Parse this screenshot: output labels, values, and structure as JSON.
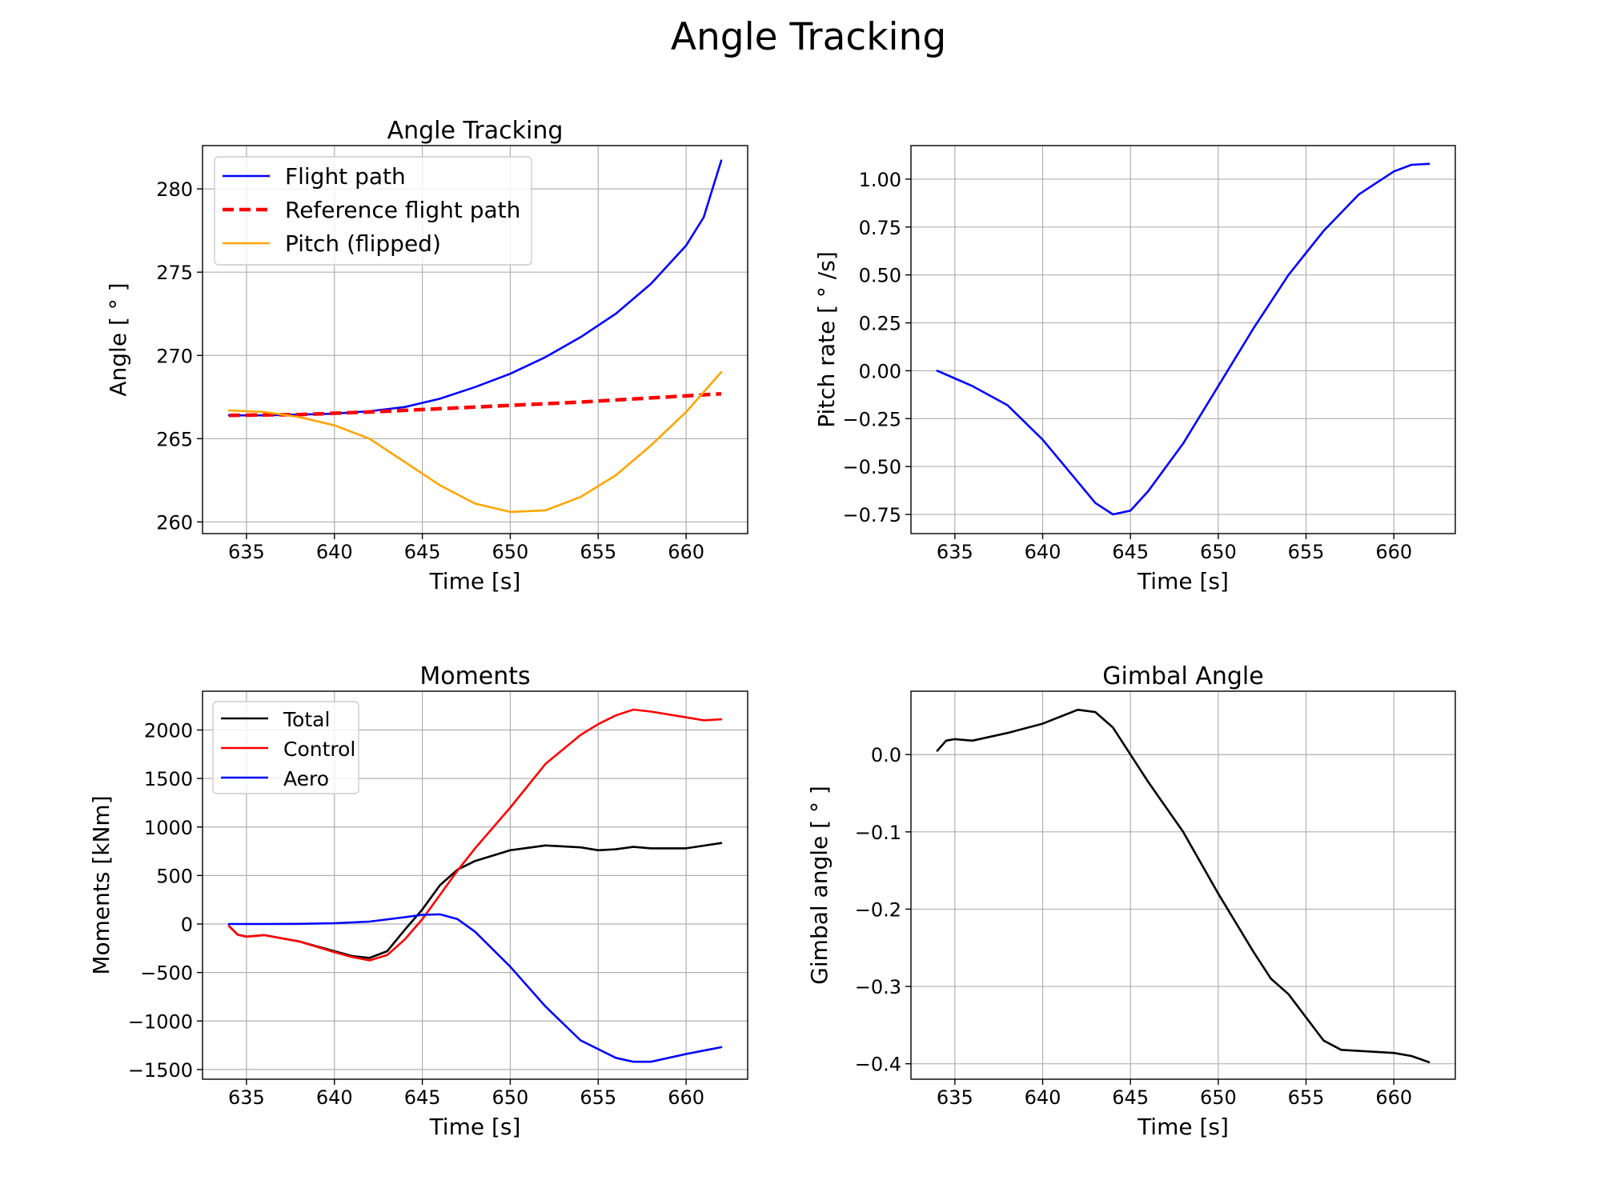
{
  "suptitle": "Angle Tracking",
  "chart_data": [
    {
      "type": "line",
      "title": "Angle Tracking",
      "xlabel": "Time [s]",
      "ylabel": "Angle [ ° ]",
      "xlim": [
        632.5,
        663.5
      ],
      "ylim": [
        259.3,
        282.6
      ],
      "xticks": [
        635,
        640,
        645,
        650,
        655,
        660
      ],
      "yticks": [
        260,
        265,
        270,
        275,
        280
      ],
      "grid": true,
      "legend": "top-left",
      "series": [
        {
          "name": "Flight path",
          "color": "#0000ff",
          "style": "solid",
          "points": [
            [
              634,
              266.4
            ],
            [
              636,
              266.4
            ],
            [
              638,
              266.45
            ],
            [
              640,
              266.5
            ],
            [
              642,
              266.65
            ],
            [
              644,
              266.9
            ],
            [
              646,
              267.4
            ],
            [
              648,
              268.1
            ],
            [
              650,
              268.9
            ],
            [
              652,
              269.9
            ],
            [
              654,
              271.1
            ],
            [
              656,
              272.5
            ],
            [
              658,
              274.3
            ],
            [
              660,
              276.6
            ],
            [
              661,
              278.3
            ],
            [
              662,
              281.7
            ]
          ]
        },
        {
          "name": "Reference flight path",
          "color": "#ff0000",
          "style": "dashed",
          "points": [
            [
              634,
              266.4
            ],
            [
              638,
              266.45
            ],
            [
              642,
              266.6
            ],
            [
              646,
              266.8
            ],
            [
              650,
              267.0
            ],
            [
              654,
              267.2
            ],
            [
              658,
              267.45
            ],
            [
              662,
              267.7
            ]
          ]
        },
        {
          "name": "Pitch (flipped)",
          "color": "#ffa500",
          "style": "solid",
          "points": [
            [
              634,
              266.7
            ],
            [
              636,
              266.6
            ],
            [
              638,
              266.3
            ],
            [
              640,
              265.8
            ],
            [
              642,
              265.0
            ],
            [
              644,
              263.6
            ],
            [
              646,
              262.2
            ],
            [
              648,
              261.1
            ],
            [
              650,
              260.6
            ],
            [
              652,
              260.7
            ],
            [
              654,
              261.5
            ],
            [
              656,
              262.8
            ],
            [
              658,
              264.6
            ],
            [
              660,
              266.6
            ],
            [
              662,
              269.0
            ]
          ]
        }
      ]
    },
    {
      "type": "line",
      "title": "",
      "xlabel": "Time [s]",
      "ylabel": "Pitch rate [ ° /s]",
      "xlim": [
        632.5,
        663.5
      ],
      "ylim": [
        -0.85,
        1.175
      ],
      "xticks": [
        635,
        640,
        645,
        650,
        655,
        660
      ],
      "yticks": [
        1.0,
        0.75,
        0.5,
        0.25,
        0.0,
        -0.25,
        -0.5,
        -0.75
      ],
      "ytick_labels": [
        "1.00",
        "0.75",
        "0.50",
        "0.25",
        "0.00",
        "−0.25",
        "−0.50",
        "−0.75"
      ],
      "grid": true,
      "series": [
        {
          "name": "",
          "color": "#0000ff",
          "style": "solid",
          "points": [
            [
              634,
              0.0
            ],
            [
              635,
              -0.04
            ],
            [
              636,
              -0.08
            ],
            [
              638,
              -0.18
            ],
            [
              640,
              -0.36
            ],
            [
              642,
              -0.58
            ],
            [
              643,
              -0.69
            ],
            [
              644,
              -0.75
            ],
            [
              645,
              -0.73
            ],
            [
              646,
              -0.63
            ],
            [
              648,
              -0.38
            ],
            [
              650,
              -0.08
            ],
            [
              652,
              0.22
            ],
            [
              654,
              0.5
            ],
            [
              656,
              0.73
            ],
            [
              658,
              0.92
            ],
            [
              660,
              1.04
            ],
            [
              661,
              1.075
            ],
            [
              662,
              1.08
            ]
          ]
        }
      ]
    },
    {
      "type": "line",
      "title": "Moments",
      "xlabel": "Time [s]",
      "ylabel": "Moments [kNm]",
      "xlim": [
        632.5,
        663.5
      ],
      "ylim": [
        -1600,
        2400
      ],
      "xticks": [
        635,
        640,
        645,
        650,
        655,
        660
      ],
      "yticks": [
        2000,
        1500,
        1000,
        500,
        0,
        -500,
        -1000,
        -1500
      ],
      "ytick_labels": [
        "2000",
        "1500",
        "1000",
        "500",
        "0",
        "−500",
        "−1000",
        "−1500"
      ],
      "grid": true,
      "legend": "top-left",
      "series": [
        {
          "name": "Total",
          "color": "#000000",
          "style": "solid",
          "points": [
            [
              634,
              -20
            ],
            [
              634.5,
              -110
            ],
            [
              635,
              -130
            ],
            [
              636,
              -115
            ],
            [
              638,
              -180
            ],
            [
              640,
              -280
            ],
            [
              641,
              -330
            ],
            [
              642,
              -350
            ],
            [
              643,
              -280
            ],
            [
              644,
              -60
            ],
            [
              645,
              150
            ],
            [
              646,
              400
            ],
            [
              647,
              560
            ],
            [
              648,
              650
            ],
            [
              650,
              760
            ],
            [
              652,
              810
            ],
            [
              654,
              790
            ],
            [
              655,
              760
            ],
            [
              656,
              770
            ],
            [
              657,
              795
            ],
            [
              658,
              780
            ],
            [
              660,
              780
            ],
            [
              662,
              835
            ]
          ]
        },
        {
          "name": "Control",
          "color": "#ff0000",
          "style": "solid",
          "points": [
            [
              634,
              -20
            ],
            [
              634.5,
              -110
            ],
            [
              635,
              -130
            ],
            [
              636,
              -115
            ],
            [
              638,
              -180
            ],
            [
              640,
              -290
            ],
            [
              641,
              -340
            ],
            [
              642,
              -375
            ],
            [
              643,
              -320
            ],
            [
              644,
              -160
            ],
            [
              645,
              50
            ],
            [
              646,
              300
            ],
            [
              647,
              550
            ],
            [
              648,
              780
            ],
            [
              650,
              1200
            ],
            [
              652,
              1650
            ],
            [
              654,
              1950
            ],
            [
              655,
              2060
            ],
            [
              656,
              2150
            ],
            [
              657,
              2210
            ],
            [
              658,
              2190
            ],
            [
              660,
              2130
            ],
            [
              661,
              2100
            ],
            [
              662,
              2110
            ]
          ]
        },
        {
          "name": "Aero",
          "color": "#0000ff",
          "style": "solid",
          "points": [
            [
              634,
              0
            ],
            [
              636,
              0
            ],
            [
              638,
              2
            ],
            [
              640,
              8
            ],
            [
              642,
              25
            ],
            [
              644,
              70
            ],
            [
              645,
              95
            ],
            [
              646,
              100
            ],
            [
              647,
              50
            ],
            [
              648,
              -80
            ],
            [
              650,
              -440
            ],
            [
              652,
              -850
            ],
            [
              654,
              -1200
            ],
            [
              656,
              -1380
            ],
            [
              657,
              -1420
            ],
            [
              658,
              -1420
            ],
            [
              660,
              -1340
            ],
            [
              662,
              -1270
            ]
          ]
        }
      ]
    },
    {
      "type": "line",
      "title": "Gimbal Angle",
      "xlabel": "Time [s]",
      "ylabel": "Gimbal angle [ ° ]",
      "xlim": [
        632.5,
        663.5
      ],
      "ylim": [
        -0.42,
        0.082
      ],
      "xticks": [
        635,
        640,
        645,
        650,
        655,
        660
      ],
      "yticks": [
        0.0,
        -0.1,
        -0.2,
        -0.3,
        -0.4
      ],
      "ytick_labels": [
        "0.0",
        "−0.1",
        "−0.2",
        "−0.3",
        "−0.4"
      ],
      "grid": true,
      "series": [
        {
          "name": "",
          "color": "#000000",
          "style": "solid",
          "points": [
            [
              634,
              0.005
            ],
            [
              634.5,
              0.018
            ],
            [
              635,
              0.02
            ],
            [
              636,
              0.018
            ],
            [
              638,
              0.028
            ],
            [
              640,
              0.04
            ],
            [
              642,
              0.058
            ],
            [
              643,
              0.055
            ],
            [
              644,
              0.035
            ],
            [
              645,
              0.0
            ],
            [
              646,
              -0.035
            ],
            [
              648,
              -0.1
            ],
            [
              650,
              -0.18
            ],
            [
              652,
              -0.255
            ],
            [
              653,
              -0.29
            ],
            [
              654,
              -0.31
            ],
            [
              655,
              -0.34
            ],
            [
              656,
              -0.37
            ],
            [
              657,
              -0.382
            ],
            [
              660,
              -0.386
            ],
            [
              661,
              -0.39
            ],
            [
              662,
              -0.398
            ]
          ]
        }
      ]
    }
  ]
}
